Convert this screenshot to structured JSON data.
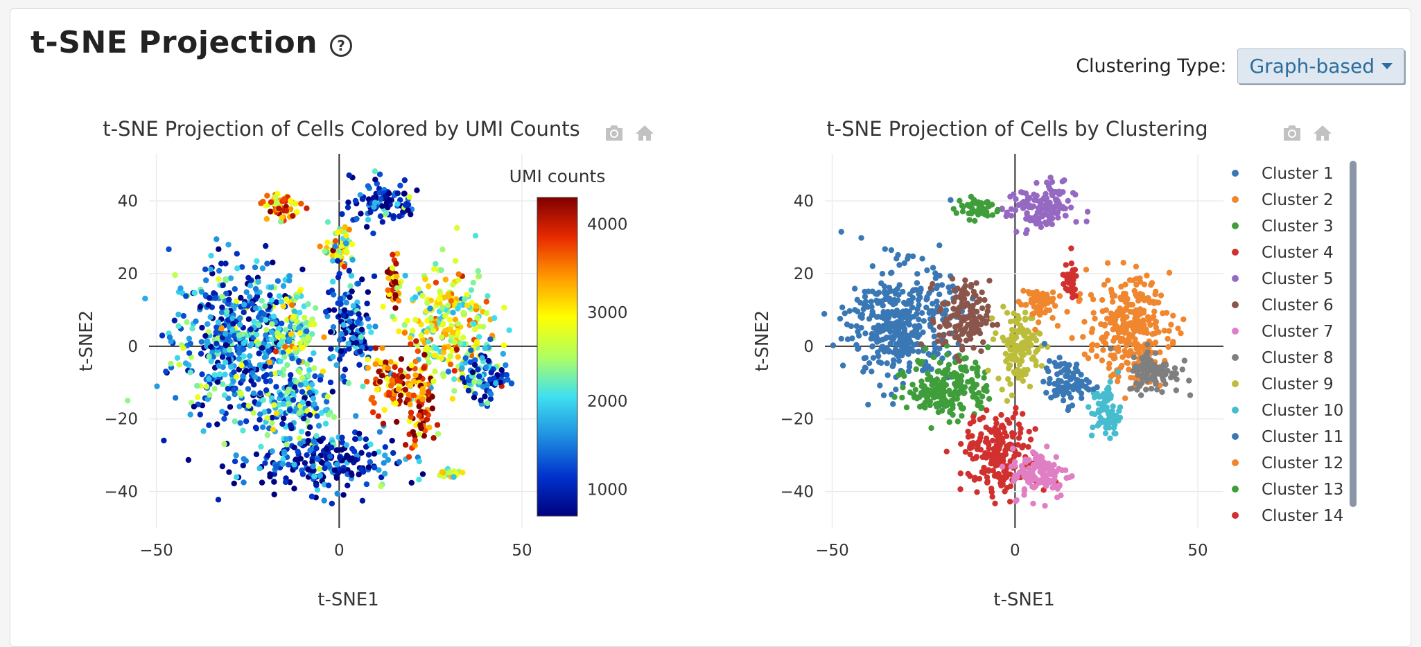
{
  "header": {
    "title": "t-SNE Projection",
    "help_icon": "question-circle-icon",
    "clustering_label": "Clustering Type:",
    "clustering_value": "Graph-based"
  },
  "modebar": {
    "icons": [
      "camera-icon",
      "home-icon"
    ],
    "icon_color": "#c2c2c2"
  },
  "chart_data": [
    {
      "type": "scatter",
      "title": "t-SNE Projection of Cells Colored by UMI Counts",
      "xlabel": "t-SNE1",
      "ylabel": "t-SNE2",
      "xlim": [
        -52,
        57
      ],
      "ylim": [
        -50,
        53
      ],
      "xticks": [
        -50,
        0,
        50
      ],
      "yticks": [
        -40,
        -20,
        0,
        20,
        40
      ],
      "xtick_labels": [
        "−50",
        "0",
        "50"
      ],
      "ytick_labels": [
        "−40",
        "−20",
        "0",
        "20",
        "40"
      ],
      "grid": true,
      "colorbar": {
        "title": "UMI counts",
        "range": [
          700,
          4300
        ],
        "ticks": [
          1000,
          2000,
          3000,
          4000
        ],
        "colorscale": [
          "#00007f",
          "#0033cc",
          "#1f8fe0",
          "#3fe0f0",
          "#b0ff60",
          "#ffff00",
          "#ff9a00",
          "#e82a00",
          "#7f0000"
        ]
      },
      "groups": [
        {
          "cx": -28,
          "cy": 2,
          "rx": 16,
          "ry": 20,
          "umi": 1500
        },
        {
          "cx": -12,
          "cy": -15,
          "rx": 9,
          "ry": 9,
          "umi": 1800
        },
        {
          "cx": -4,
          "cy": -32,
          "rx": 18,
          "ry": 8,
          "umi": 1050
        },
        {
          "cx": -12,
          "cy": 4,
          "rx": 5,
          "ry": 10,
          "umi": 2300
        },
        {
          "cx": 3,
          "cy": 6,
          "rx": 6,
          "ry": 12,
          "umi": 1200
        },
        {
          "cx": 12,
          "cy": 40,
          "rx": 8,
          "ry": 6,
          "umi": 1150
        },
        {
          "cx": 0,
          "cy": 27,
          "rx": 4,
          "ry": 6,
          "umi": 2800
        },
        {
          "cx": 30,
          "cy": 5,
          "rx": 11,
          "ry": 14,
          "umi": 2700
        },
        {
          "cx": 40,
          "cy": -8,
          "rx": 6,
          "ry": 7,
          "umi": 1500
        },
        {
          "cx": 13,
          "cy": -10,
          "rx": 5,
          "ry": 7,
          "umi": 3600
        },
        {
          "cx": 22,
          "cy": -15,
          "rx": 4,
          "ry": 12,
          "umi": 3700
        },
        {
          "cx": 15,
          "cy": 18,
          "rx": 2,
          "ry": 5,
          "umi": 4000
        },
        {
          "cx": -16,
          "cy": 38,
          "rx": 5,
          "ry": 4,
          "umi": 3400
        },
        {
          "cx": 30,
          "cy": -35,
          "rx": 3,
          "ry": 1,
          "umi": 2500
        }
      ]
    },
    {
      "type": "scatter",
      "title": "t-SNE Projection of Cells by Clustering",
      "xlabel": "t-SNE1",
      "ylabel": "t-SNE2",
      "xlim": [
        -52,
        57
      ],
      "ylim": [
        -50,
        53
      ],
      "xticks": [
        -50,
        0,
        50
      ],
      "yticks": [
        -40,
        -20,
        0,
        20,
        40
      ],
      "xtick_labels": [
        "−50",
        "0",
        "50"
      ],
      "ytick_labels": [
        "−40",
        "−20",
        "0",
        "20",
        "40"
      ],
      "grid": true,
      "legend_position": "right",
      "series": [
        {
          "name": "Cluster 1",
          "color": "#3a78b5",
          "cx": -31,
          "cy": 6,
          "rx": 14,
          "ry": 16
        },
        {
          "name": "Cluster 2",
          "color": "#f0862e",
          "cx": 31,
          "cy": 5,
          "rx": 11,
          "ry": 14
        },
        {
          "name": "Cluster 3",
          "color": "#3f9e3a",
          "cx": -18,
          "cy": -11,
          "rx": 11,
          "ry": 9
        },
        {
          "name": "Cluster 4",
          "color": "#d0312f",
          "cx": -4,
          "cy": -30,
          "rx": 10,
          "ry": 11
        },
        {
          "name": "Cluster 5",
          "color": "#9569c2",
          "cx": 7,
          "cy": 38,
          "rx": 9,
          "ry": 7
        },
        {
          "name": "Cluster 6",
          "color": "#8a564b",
          "cx": -14,
          "cy": 8,
          "rx": 7,
          "ry": 10
        },
        {
          "name": "Cluster 7",
          "color": "#e07fc3",
          "cx": 7,
          "cy": -35,
          "rx": 8,
          "ry": 7
        },
        {
          "name": "Cluster 8",
          "color": "#7f7f7f",
          "cx": 38,
          "cy": -7,
          "rx": 7,
          "ry": 6
        },
        {
          "name": "Cluster 9",
          "color": "#bcbd3a",
          "cx": 1,
          "cy": 0,
          "rx": 6,
          "ry": 10
        },
        {
          "name": "Cluster 10",
          "color": "#46bccf",
          "cx": 25,
          "cy": -18,
          "rx": 4,
          "ry": 8
        },
        {
          "name": "Cluster 11",
          "color": "#3a78b5",
          "cx": 14,
          "cy": -10,
          "rx": 6,
          "ry": 6
        },
        {
          "name": "Cluster 12",
          "color": "#f0862e",
          "cx": 6,
          "cy": 12,
          "rx": 5,
          "ry": 5
        },
        {
          "name": "Cluster 13",
          "color": "#3f9e3a",
          "cx": -10,
          "cy": 38,
          "rx": 6,
          "ry": 3
        },
        {
          "name": "Cluster 14",
          "color": "#d0312f",
          "cx": 15,
          "cy": 18,
          "rx": 2,
          "ry": 5
        }
      ]
    }
  ]
}
